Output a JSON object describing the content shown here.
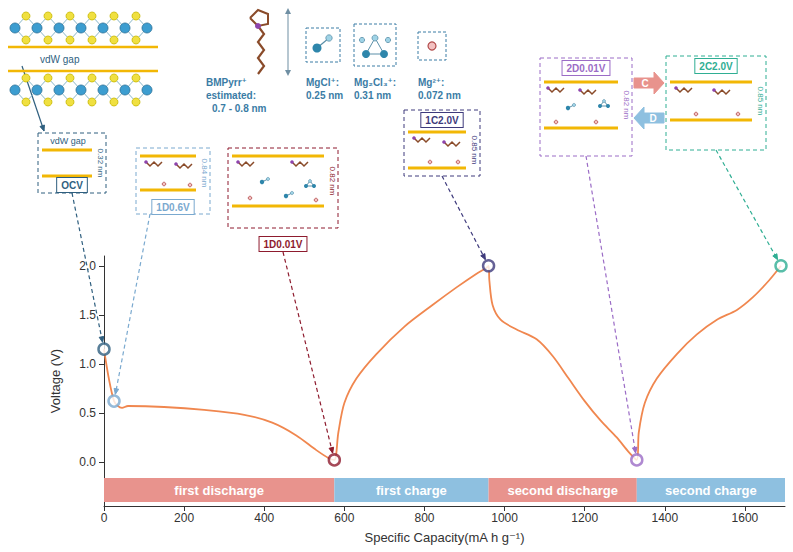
{
  "chart_data": {
    "type": "line",
    "x_label": "Specific Capacity(mA h g⁻¹)",
    "y_label": "Voltage (V)",
    "color": "#f0874f",
    "grid": false,
    "xlim": [
      0,
      1700
    ],
    "xticks": [
      0,
      200,
      400,
      600,
      800,
      1000,
      1200,
      1400,
      1600
    ],
    "ylim": [
      -0.45,
      2.1
    ],
    "yticks": [
      {
        "value": 0,
        "label": "0.0"
      },
      {
        "value": 0.5,
        "label": "0.5"
      },
      {
        "value": 1,
        "label": "1.0"
      },
      {
        "value": 1.5,
        "label": "1.5"
      },
      {
        "value": 2,
        "label": "2.0"
      }
    ],
    "x": [
      0,
      25,
      45,
      60,
      150,
      250,
      350,
      420,
      480,
      530,
      560,
      575,
      585,
      600,
      630,
      680,
      750,
      820,
      880,
      930,
      955,
      960,
      962,
      970,
      990,
      1030,
      1080,
      1120,
      1160,
      1200,
      1240,
      1280,
      1310,
      1330,
      1335,
      1350,
      1380,
      1430,
      1480,
      1530,
      1580,
      1620,
      1660,
      1690
    ],
    "values": [
      1.15,
      0.62,
      0.55,
      0.57,
      0.56,
      0.53,
      0.48,
      0.4,
      0.27,
      0.12,
      0.04,
      0.02,
      0.3,
      0.6,
      0.85,
      1.1,
      1.38,
      1.6,
      1.78,
      1.92,
      1.98,
      2.0,
      1.85,
      1.6,
      1.45,
      1.35,
      1.25,
      1.08,
      0.85,
      0.62,
      0.42,
      0.25,
      0.1,
      0.02,
      0.3,
      0.6,
      0.85,
      1.1,
      1.3,
      1.45,
      1.55,
      1.68,
      1.85,
      2.0
    ],
    "phases": [
      {
        "label": "first discharge",
        "start": 0,
        "end": 575,
        "color": "#e8938d"
      },
      {
        "label": "first charge",
        "start": 575,
        "end": 960,
        "color": "#8ec0e0"
      },
      {
        "label": "second discharge",
        "start": 960,
        "end": 1330,
        "color": "#e8938d"
      },
      {
        "label": "second charge",
        "start": 1330,
        "end": 1700,
        "color": "#8ec0e0"
      }
    ],
    "states": [
      {
        "label": "OCV",
        "x": 0,
        "y": 1.15,
        "color": "#2f5f7f",
        "spacing": "0.32 nm"
      },
      {
        "label": "1D0.6V",
        "x": 25,
        "y": 0.62,
        "color": "#7aa9cf",
        "spacing": "0.84 nm"
      },
      {
        "label": "1D0.01V",
        "x": 575,
        "y": 0.02,
        "color": "#8e1b2e",
        "spacing": "0.82 nm"
      },
      {
        "label": "1C2.0V",
        "x": 960,
        "y": 2.0,
        "color": "#3e3a7c",
        "spacing": "0.85 nm"
      },
      {
        "label": "2D0.01V",
        "x": 1330,
        "y": 0.02,
        "color": "#9b6cc6",
        "spacing": "0.82 nm"
      },
      {
        "label": "2C2.0V",
        "x": 1690,
        "y": 2.0,
        "color": "#2fae93",
        "spacing": "0.85 nm"
      }
    ],
    "structure_label": "vdW gap",
    "ions": [
      {
        "name": "BMPyrr⁺",
        "note": "estimated:",
        "size": "0.7 - 0.8 nm"
      },
      {
        "name": "MgCl⁺:",
        "size": "0.25 nm"
      },
      {
        "name": "Mg₂Cl₃⁺:",
        "size": "0.31 nm"
      },
      {
        "name": "Mg²⁺:",
        "size": "0.072 nm"
      }
    ],
    "transitions": {
      "charge": "C",
      "discharge": "D"
    }
  }
}
